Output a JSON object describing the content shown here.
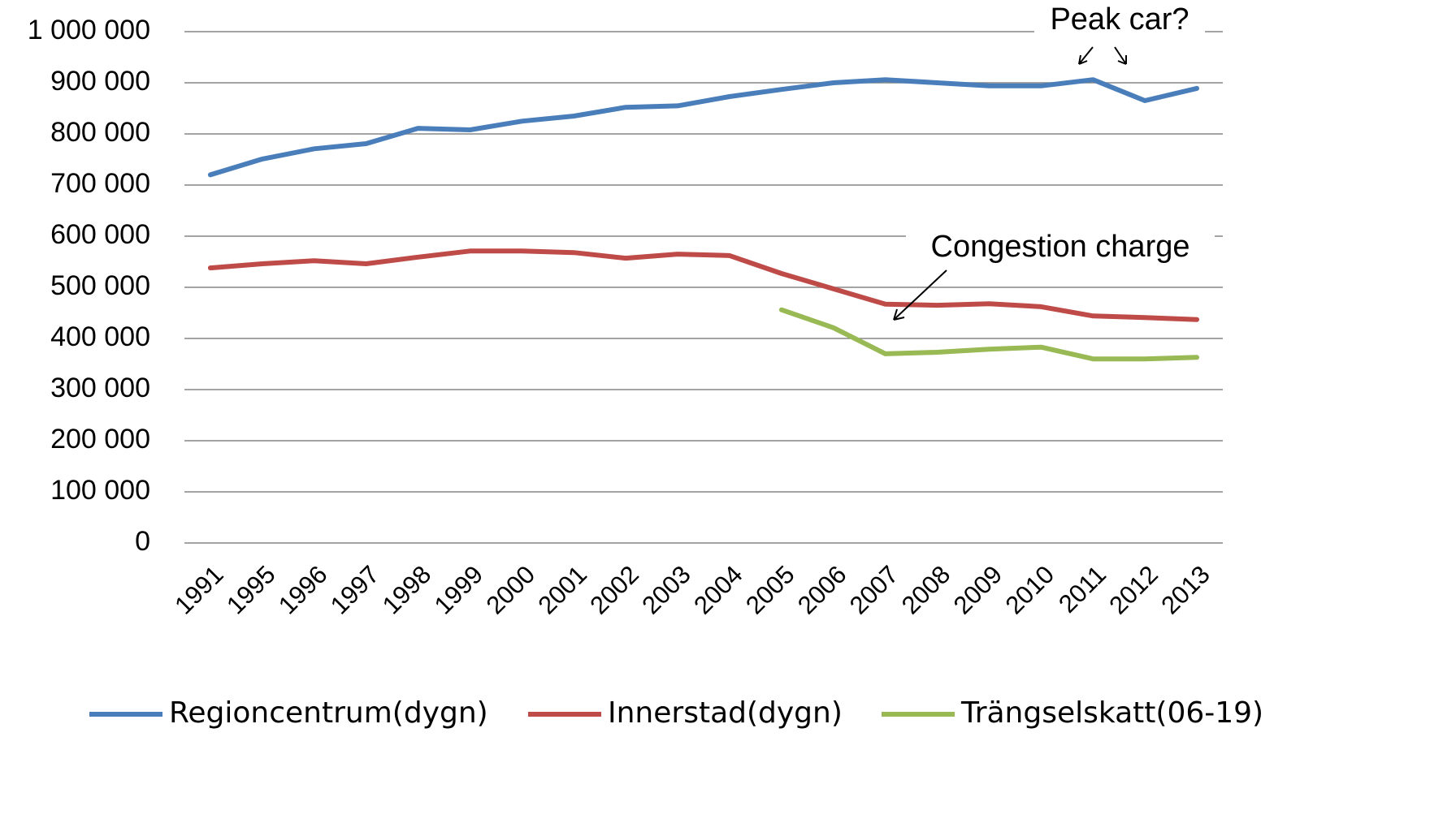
{
  "chart_data": {
    "type": "line",
    "categories": [
      "1991",
      "1995",
      "1996",
      "1997",
      "1998",
      "1999",
      "2000",
      "2001",
      "2002",
      "2003",
      "2004",
      "2005",
      "2006",
      "2007",
      "2008",
      "2009",
      "2010",
      "2011",
      "2012",
      "2013"
    ],
    "series": [
      {
        "name": "Regioncentrum(dygn)",
        "color": "#4a7ebb",
        "values": [
          720000,
          751000,
          771000,
          781000,
          811000,
          808000,
          825000,
          835000,
          852000,
          855000,
          873000,
          887000,
          900000,
          906000,
          900000,
          894000,
          894000,
          906000,
          865000,
          889000
        ]
      },
      {
        "name": "Innerstad(dygn)",
        "color": "#be4b48",
        "values": [
          538000,
          546000,
          552000,
          546000,
          559000,
          571000,
          571000,
          568000,
          557000,
          565000,
          562000,
          527000,
          497000,
          467000,
          465000,
          468000,
          462000,
          444000,
          441000,
          437000
        ]
      },
      {
        "name": "Trängselskatt(06-19)",
        "color": "#98b954",
        "values": [
          null,
          null,
          null,
          null,
          null,
          null,
          null,
          null,
          null,
          null,
          null,
          456000,
          421000,
          370000,
          373000,
          379000,
          383000,
          360000,
          360000,
          363000
        ]
      }
    ],
    "ylim": [
      0,
      1000000
    ],
    "yticks": [
      0,
      {
        "value": 100000,
        "label": "100 000"
      },
      {
        "value": 200000,
        "label": "200 000"
      },
      {
        "value": 300000,
        "label": "300 000"
      },
      {
        "value": 400000,
        "label": "400 000"
      },
      {
        "value": 500000,
        "label": "500 000"
      },
      {
        "value": 600000,
        "label": "600 000"
      },
      {
        "value": 700000,
        "label": "700 000"
      },
      {
        "value": 800000,
        "label": "800 000"
      },
      {
        "value": 900000,
        "label": "900 000"
      },
      {
        "value": 1000000,
        "label": "1 000 000"
      }
    ],
    "grid": true,
    "legend": "bottom",
    "annotations": [
      {
        "text": "Peak car?"
      },
      {
        "text": "Congestion charge"
      }
    ]
  }
}
